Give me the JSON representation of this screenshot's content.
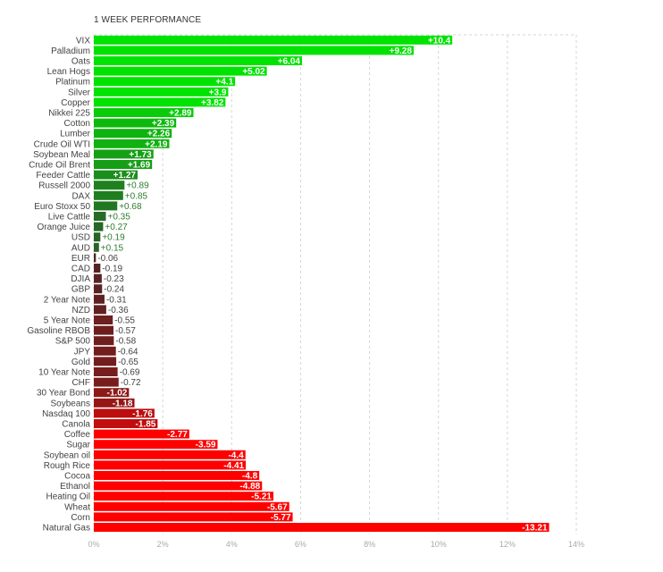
{
  "title": "1 WEEK PERFORMANCE",
  "chart_data": {
    "type": "bar",
    "orientation": "horizontal",
    "title": "1 WEEK PERFORMANCE",
    "xlim": [
      0,
      14
    ],
    "x_ticks": [
      "0%",
      "2%",
      "4%",
      "6%",
      "8%",
      "10%",
      "12%",
      "14%"
    ],
    "grid": true,
    "bar_length": "absolute value",
    "categories": [
      "VIX",
      "Palladium",
      "Oats",
      "Lean Hogs",
      "Platinum",
      "Silver",
      "Copper",
      "Nikkei 225",
      "Cotton",
      "Lumber",
      "Crude Oil WTI",
      "Soybean Meal",
      "Crude Oil Brent",
      "Feeder Cattle",
      "Russell 2000",
      "DAX",
      "Euro Stoxx 50",
      "Live Cattle",
      "Orange Juice",
      "USD",
      "AUD",
      "EUR",
      "CAD",
      "DJIA",
      "GBP",
      "2 Year Note",
      "NZD",
      "5 Year Note",
      "Gasoline RBOB",
      "S&P 500",
      "JPY",
      "Gold",
      "10 Year Note",
      "CHF",
      "30 Year Bond",
      "Soybeans",
      "Nasdaq 100",
      "Canola",
      "Coffee",
      "Sugar",
      "Soybean oil",
      "Rough Rice",
      "Cocoa",
      "Ethanol",
      "Heating Oil",
      "Wheat",
      "Corn",
      "Natural Gas"
    ],
    "values": [
      10.4,
      9.28,
      6.04,
      5.02,
      4.1,
      3.9,
      3.82,
      2.89,
      2.39,
      2.26,
      2.19,
      1.73,
      1.69,
      1.27,
      0.89,
      0.85,
      0.68,
      0.35,
      0.27,
      0.19,
      0.15,
      -0.06,
      -0.19,
      -0.23,
      -0.24,
      -0.31,
      -0.36,
      -0.55,
      -0.57,
      -0.58,
      -0.64,
      -0.65,
      -0.69,
      -0.72,
      -1.02,
      -1.18,
      -1.76,
      -1.85,
      -2.77,
      -3.59,
      -4.4,
      -4.41,
      -4.8,
      -4.88,
      -5.21,
      -5.67,
      -5.77,
      -13.21
    ],
    "value_labels": [
      "+10.4",
      "+9.28",
      "+6.04",
      "+5.02",
      "+4.1",
      "+3.9",
      "+3.82",
      "+2.89",
      "+2.39",
      "+2.26",
      "+2.19",
      "+1.73",
      "+1.69",
      "+1.27",
      "+0.89",
      "+0.85",
      "+0.68",
      "+0.35",
      "+0.27",
      "+0.19",
      "+0.15",
      "-0.06",
      "-0.19",
      "-0.23",
      "-0.24",
      "-0.31",
      "-0.36",
      "-0.55",
      "-0.57",
      "-0.58",
      "-0.64",
      "-0.65",
      "-0.69",
      "-0.72",
      "-1.02",
      "-1.18",
      "-1.76",
      "-1.85",
      "-2.77",
      "-3.59",
      "-4.4",
      "-4.41",
      "-4.8",
      "-4.88",
      "-5.21",
      "-5.67",
      "-5.77",
      "-13.21"
    ],
    "colors": {
      "positive_strong": "#00e300",
      "positive_weak": "#2a5e2a",
      "negative_weak": "#4a2626",
      "negative_strong": "#ff0000",
      "positive_label_dark": "#2e7d2e",
      "negative_label_dark": "#444444",
      "grid": "#d5d5d5"
    }
  }
}
